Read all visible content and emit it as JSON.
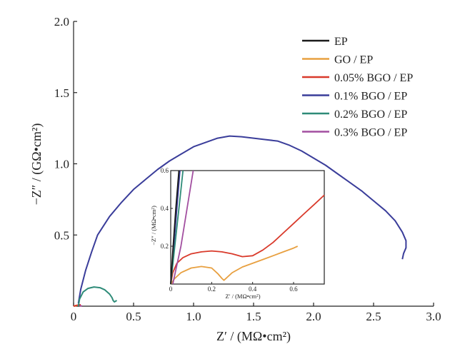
{
  "chart_data": [
    {
      "type": "line",
      "title": "",
      "xlabel": "Z′ / (MΩ•cm²)",
      "ylabel": "−Z″ / (GΩ•cm²)",
      "xlim": [
        0,
        3.0
      ],
      "ylim": [
        0,
        2.0
      ],
      "x_ticks": [
        "0",
        "0.5",
        "1.0",
        "1.5",
        "2.0",
        "2.5",
        "3.0"
      ],
      "y_ticks": [
        "0.5",
        "1.0",
        "1.5",
        "2.0"
      ],
      "grid": false,
      "legend_position": "top-right",
      "series": [
        {
          "name": "EP",
          "color": "#1a1a1a",
          "points": [
            [
              0.02,
              0.0
            ],
            [
              0.03,
              0.005
            ],
            [
              0.04,
              0.0
            ]
          ]
        },
        {
          "name": "GO / EP",
          "color": "#e8a040",
          "points": [
            [
              0.0,
              0.0
            ],
            [
              0.02,
              0.003
            ],
            [
              0.04,
              0.006
            ],
            [
              0.06,
              0.008
            ]
          ]
        },
        {
          "name": "0.05% BGO / EP",
          "color": "#d93a2b",
          "points": [
            [
              0.0,
              0.0
            ],
            [
              0.02,
              0.005
            ],
            [
              0.04,
              0.008
            ],
            [
              0.06,
              0.01
            ]
          ]
        },
        {
          "name": "0.1% BGO / EP",
          "color": "#3a3d9a",
          "points": [
            [
              0.04,
              0.02
            ],
            [
              0.06,
              0.12
            ],
            [
              0.1,
              0.25
            ],
            [
              0.15,
              0.38
            ],
            [
              0.2,
              0.5
            ],
            [
              0.3,
              0.63
            ],
            [
              0.4,
              0.73
            ],
            [
              0.5,
              0.82
            ],
            [
              0.6,
              0.89
            ],
            [
              0.7,
              0.96
            ],
            [
              0.8,
              1.02
            ],
            [
              0.9,
              1.07
            ],
            [
              1.0,
              1.12
            ],
            [
              1.1,
              1.15
            ],
            [
              1.2,
              1.18
            ],
            [
              1.3,
              1.195
            ],
            [
              1.4,
              1.19
            ],
            [
              1.5,
              1.18
            ],
            [
              1.6,
              1.17
            ],
            [
              1.7,
              1.16
            ],
            [
              1.8,
              1.13
            ],
            [
              1.9,
              1.09
            ],
            [
              2.0,
              1.04
            ],
            [
              2.1,
              0.99
            ],
            [
              2.2,
              0.93
            ],
            [
              2.3,
              0.87
            ],
            [
              2.4,
              0.81
            ],
            [
              2.5,
              0.74
            ],
            [
              2.6,
              0.67
            ],
            [
              2.68,
              0.6
            ],
            [
              2.74,
              0.52
            ],
            [
              2.77,
              0.46
            ],
            [
              2.77,
              0.41
            ],
            [
              2.75,
              0.37
            ],
            [
              2.74,
              0.33
            ]
          ]
        },
        {
          "name": "0.2% BGO / EP",
          "color": "#2e8b78",
          "points": [
            [
              0.04,
              0.0
            ],
            [
              0.05,
              0.05
            ],
            [
              0.08,
              0.1
            ],
            [
              0.12,
              0.125
            ],
            [
              0.17,
              0.135
            ],
            [
              0.22,
              0.13
            ],
            [
              0.26,
              0.115
            ],
            [
              0.3,
              0.085
            ],
            [
              0.32,
              0.06
            ],
            [
              0.33,
              0.04
            ],
            [
              0.34,
              0.03
            ],
            [
              0.36,
              0.04
            ]
          ]
        },
        {
          "name": "0.3% BGO / EP",
          "color": "#a24fa0",
          "points": [
            [
              0.05,
              0.0
            ],
            [
              0.06,
              0.003
            ],
            [
              0.07,
              0.0
            ]
          ]
        }
      ]
    },
    {
      "type": "line",
      "title": "",
      "xlabel": "Z′ / (MΩ•cm²)",
      "ylabel": "−Z″ / (MΩ•cm²)",
      "xlim": [
        0,
        0.75
      ],
      "ylim": [
        0,
        0.6
      ],
      "x_ticks": [
        "0",
        "0.2",
        "0.4",
        "0.6"
      ],
      "y_ticks": [
        "0.2",
        "0.4",
        "0.6"
      ],
      "grid": false,
      "series": [
        {
          "name": "GO / EP",
          "color": "#e8a040",
          "points": [
            [
              0.0,
              0.0
            ],
            [
              0.02,
              0.03
            ],
            [
              0.05,
              0.06
            ],
            [
              0.1,
              0.085
            ],
            [
              0.15,
              0.093
            ],
            [
              0.2,
              0.085
            ],
            [
              0.23,
              0.055
            ],
            [
              0.25,
              0.03
            ],
            [
              0.26,
              0.02
            ],
            [
              0.27,
              0.03
            ],
            [
              0.3,
              0.06
            ],
            [
              0.35,
              0.09
            ],
            [
              0.4,
              0.11
            ],
            [
              0.45,
              0.13
            ],
            [
              0.5,
              0.15
            ],
            [
              0.55,
              0.17
            ],
            [
              0.6,
              0.19
            ],
            [
              0.62,
              0.2
            ]
          ]
        },
        {
          "name": "0.05% BGO / EP",
          "color": "#d93a2b",
          "points": [
            [
              0.0,
              0.0
            ],
            [
              0.01,
              0.06
            ],
            [
              0.03,
              0.11
            ],
            [
              0.06,
              0.14
            ],
            [
              0.1,
              0.16
            ],
            [
              0.15,
              0.17
            ],
            [
              0.2,
              0.175
            ],
            [
              0.25,
              0.17
            ],
            [
              0.3,
              0.16
            ],
            [
              0.35,
              0.145
            ],
            [
              0.4,
              0.15
            ],
            [
              0.45,
              0.18
            ],
            [
              0.5,
              0.22
            ],
            [
              0.55,
              0.27
            ],
            [
              0.6,
              0.32
            ],
            [
              0.65,
              0.37
            ],
            [
              0.7,
              0.42
            ],
            [
              0.75,
              0.47
            ]
          ]
        },
        {
          "name": "0.1% BGO / EP",
          "color": "#3a3d9a",
          "points": [
            [
              0.0,
              0.0
            ],
            [
              0.015,
              0.2
            ],
            [
              0.03,
              0.4
            ],
            [
              0.045,
              0.6
            ]
          ]
        },
        {
          "name": "0.2% BGO / EP",
          "color": "#2e8b78",
          "points": [
            [
              0.0,
              0.0
            ],
            [
              0.02,
              0.2
            ],
            [
              0.04,
              0.4
            ],
            [
              0.06,
              0.6
            ]
          ]
        },
        {
          "name": "0.3% BGO / EP",
          "color": "#a24fa0",
          "points": [
            [
              0.01,
              0.0
            ],
            [
              0.05,
              0.2
            ],
            [
              0.08,
              0.4
            ],
            [
              0.11,
              0.6
            ]
          ]
        },
        {
          "name": "EP",
          "color": "#1a1a1a",
          "points": [
            [
              0.0,
              0.0
            ],
            [
              0.012,
              0.2
            ],
            [
              0.025,
              0.4
            ],
            [
              0.04,
              0.6
            ]
          ]
        }
      ]
    }
  ]
}
